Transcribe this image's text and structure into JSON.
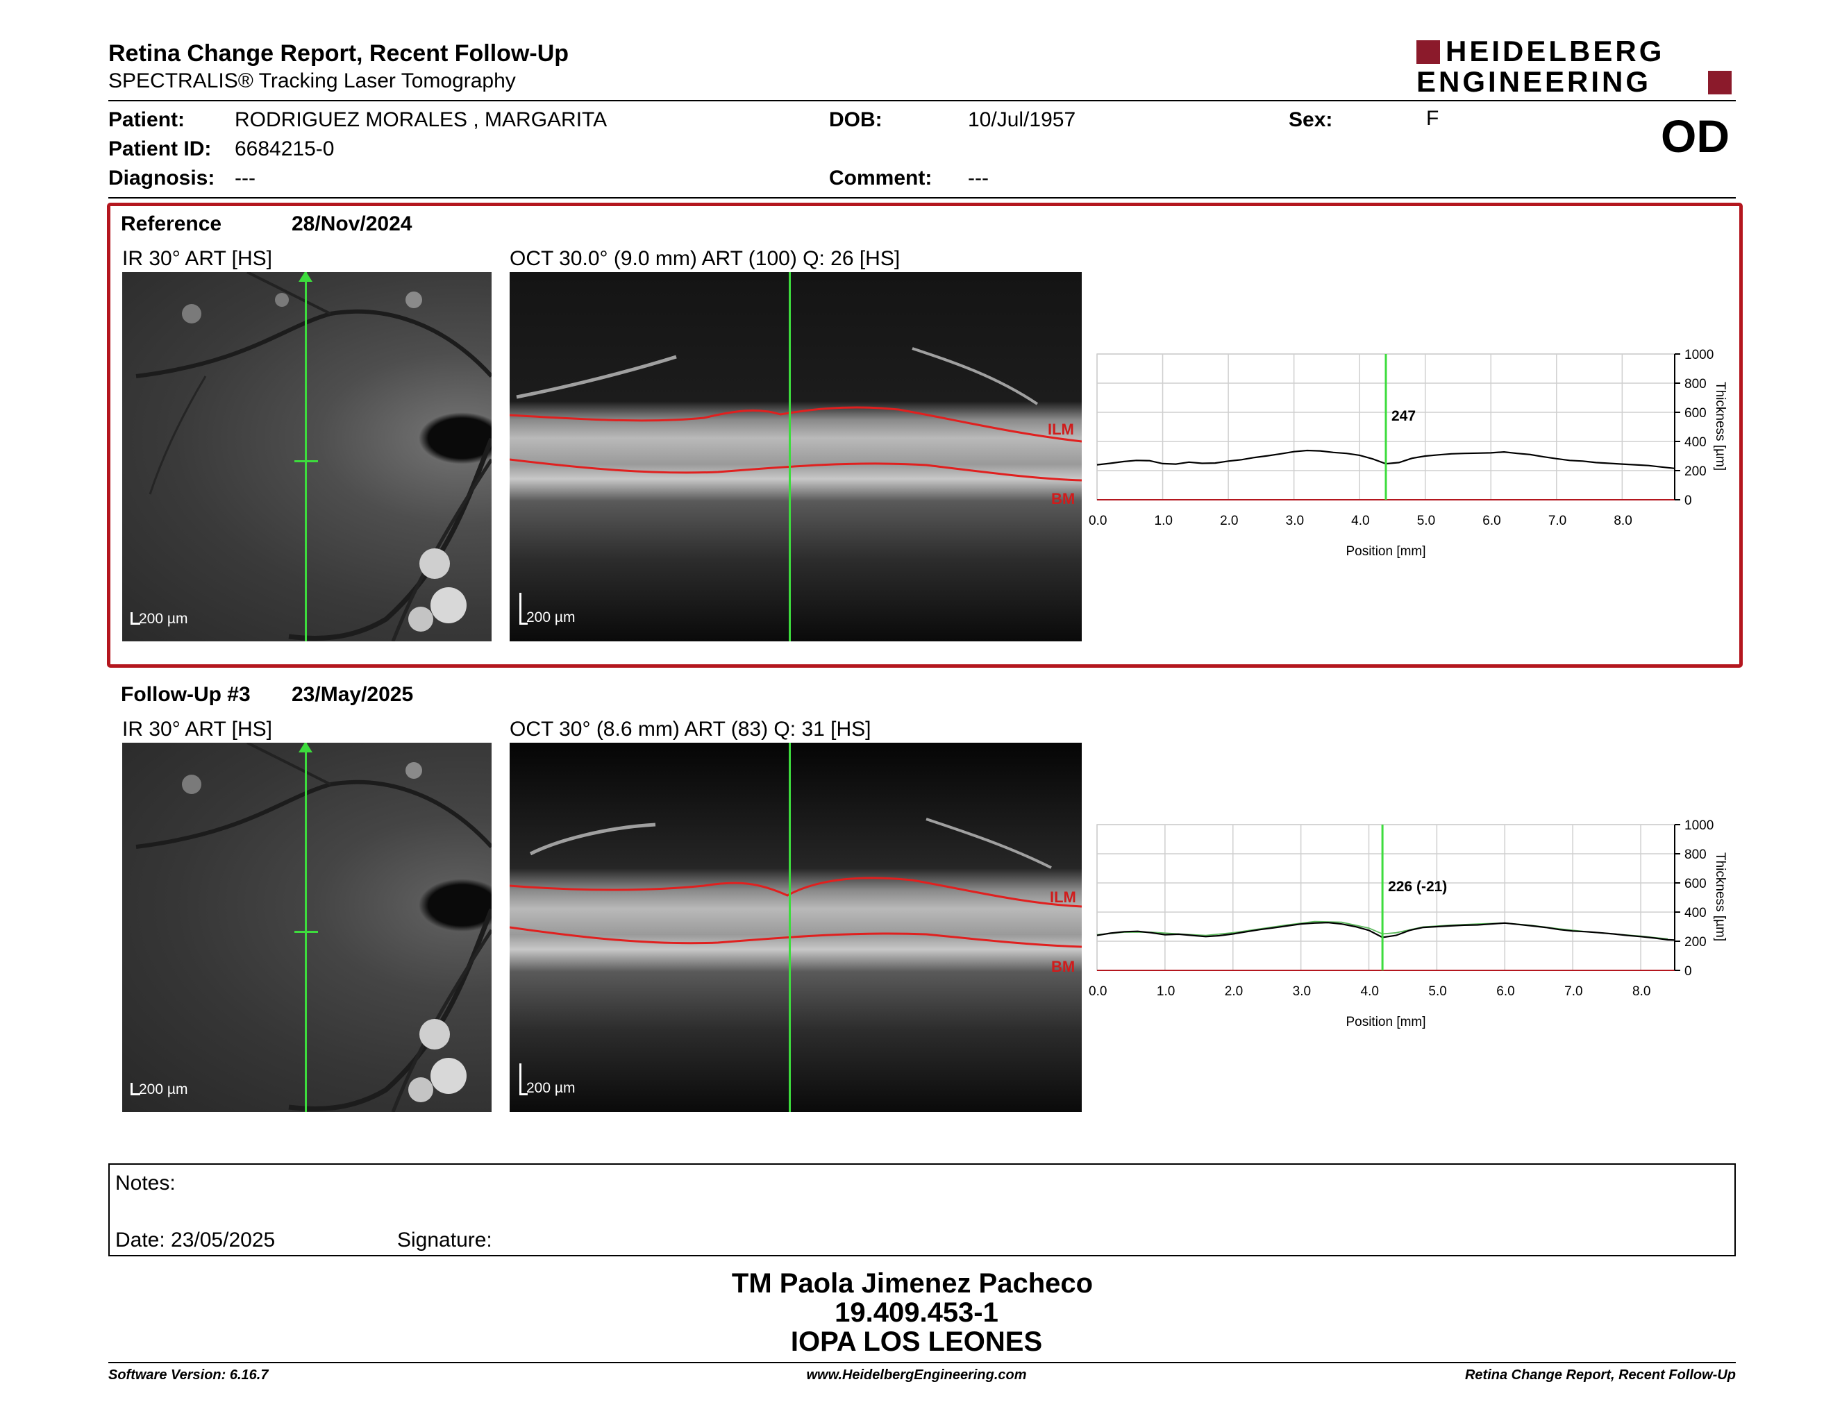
{
  "header": {
    "title": "Retina Change Report, Recent Follow-Up",
    "subtitle": "SPECTRALIS® Tracking Laser Tomography",
    "logo_line1": "HEIDELBERG",
    "logo_line2": "ENGINEERING",
    "eye": "OD"
  },
  "patient": {
    "name_label": "Patient:",
    "name": "RODRIGUEZ MORALES , MARGARITA",
    "id_label": "Patient ID:",
    "id": "6684215-0",
    "diagnosis_label": "Diagnosis:",
    "diagnosis": "---",
    "dob_label": "DOB:",
    "dob": "10/Jul/1957",
    "comment_label": "Comment:",
    "comment": "---",
    "sex_label": "Sex:",
    "sex": "F"
  },
  "reference": {
    "label": "Reference",
    "date": "28/Nov/2024",
    "ir_title": "IR 30° ART [HS]",
    "oct_title": "OCT 30.0° (9.0 mm) ART (100) Q: 26 [HS]",
    "scale_ir": "200 µm",
    "scale_oct": "200 µm",
    "ilm": "ILM",
    "bm": "BM"
  },
  "followup": {
    "label": "Follow-Up #3",
    "date": "23/May/2025",
    "ir_title": "IR 30° ART [HS]",
    "oct_title": "OCT 30° (8.6 mm) ART (83) Q: 31 [HS]",
    "scale_ir": "200 µm",
    "scale_oct": "200 µm",
    "ilm": "ILM",
    "bm": "BM"
  },
  "chart_data": [
    {
      "type": "line",
      "xlabel": "Position [mm]",
      "ylabel": "Thickness [µm]",
      "xlim": [
        0,
        8.8
      ],
      "ylim": [
        0,
        1000
      ],
      "x_ticks": [
        "0.0",
        "1.0",
        "2.0",
        "3.0",
        "4.0",
        "5.0",
        "6.0",
        "7.0",
        "8.0"
      ],
      "y_ticks": [
        "0",
        "200",
        "400",
        "600",
        "800",
        "1000"
      ],
      "cursor_x": 4.4,
      "cursor_label": "247",
      "series": [
        {
          "x": [
            0,
            0.2,
            0.4,
            0.6,
            0.8,
            1.0,
            1.2,
            1.4,
            1.6,
            1.8,
            2.0,
            2.2,
            2.4,
            2.6,
            2.8,
            3.0,
            3.2,
            3.4,
            3.6,
            3.8,
            4.0,
            4.2,
            4.4,
            4.6,
            4.8,
            5.0,
            5.2,
            5.4,
            5.6,
            5.8,
            6.0,
            6.2,
            6.4,
            6.6,
            6.8,
            7.0,
            7.2,
            7.4,
            7.6,
            7.8,
            8.0,
            8.2,
            8.4,
            8.6,
            8.8
          ],
          "y": [
            240,
            250,
            262,
            270,
            268,
            248,
            245,
            258,
            250,
            252,
            265,
            275,
            290,
            302,
            315,
            330,
            338,
            335,
            325,
            318,
            305,
            280,
            247,
            255,
            285,
            300,
            308,
            315,
            318,
            320,
            322,
            328,
            318,
            310,
            295,
            282,
            270,
            265,
            255,
            250,
            245,
            240,
            235,
            225,
            215
          ]
        }
      ]
    },
    {
      "type": "line",
      "xlabel": "Position [mm]",
      "ylabel": "Thickness [µm]",
      "xlim": [
        0,
        8.5
      ],
      "ylim": [
        0,
        1000
      ],
      "x_ticks": [
        "0.0",
        "1.0",
        "2.0",
        "3.0",
        "4.0",
        "5.0",
        "6.0",
        "7.0",
        "8.0"
      ],
      "y_ticks": [
        "0",
        "200",
        "400",
        "600",
        "800",
        "1000"
      ],
      "cursor_x": 4.2,
      "cursor_label": "226 (-21)",
      "series": [
        {
          "x": [
            0,
            0.2,
            0.4,
            0.6,
            0.8,
            1.0,
            1.2,
            1.4,
            1.6,
            1.8,
            2.0,
            2.2,
            2.4,
            2.6,
            2.8,
            3.0,
            3.2,
            3.4,
            3.6,
            3.8,
            4.0,
            4.2,
            4.4,
            4.6,
            4.8,
            5.0,
            5.2,
            5.4,
            5.6,
            5.8,
            6.0,
            6.2,
            6.4,
            6.6,
            6.8,
            7.0,
            7.2,
            7.4,
            7.6,
            7.8,
            8.0,
            8.2,
            8.4,
            8.5
          ],
          "y": [
            240,
            255,
            265,
            268,
            258,
            245,
            248,
            240,
            232,
            238,
            250,
            265,
            280,
            292,
            305,
            318,
            325,
            328,
            318,
            300,
            275,
            226,
            240,
            275,
            295,
            300,
            305,
            310,
            312,
            318,
            325,
            315,
            305,
            295,
            280,
            270,
            265,
            258,
            250,
            240,
            232,
            222,
            210,
            208
          ]
        },
        {
          "x": [
            0,
            0.4,
            0.8,
            1.2,
            1.6,
            2.0,
            2.4,
            2.8,
            3.2,
            3.6,
            4.0,
            4.2,
            4.4,
            4.8,
            5.2,
            5.6,
            6.0,
            6.4,
            6.8,
            7.2,
            7.6,
            8.0,
            8.4
          ],
          "y": [
            245,
            262,
            262,
            250,
            240,
            258,
            285,
            312,
            335,
            330,
            290,
            250,
            258,
            298,
            310,
            318,
            325,
            308,
            285,
            265,
            250,
            235,
            215
          ]
        }
      ]
    }
  ],
  "notes": {
    "label": "Notes:",
    "date_label": "Date: 23/05/2025",
    "signature_label": "Signature:"
  },
  "signature_block": {
    "name": "TM Paola Jimenez Pacheco",
    "rut": "19.409.453-1",
    "place": "IOPA LOS LEONES"
  },
  "footer": {
    "version": "Software Version: 6.16.7",
    "url": "www.HeidelbergEngineering.com",
    "report": "Retina Change Report, Recent Follow-Up"
  },
  "colors": {
    "accent_red": "#b4161e",
    "cursor_green": "#3ddc3d",
    "layer_red": "#e0201f",
    "logo_red": "#8b1a2b"
  }
}
